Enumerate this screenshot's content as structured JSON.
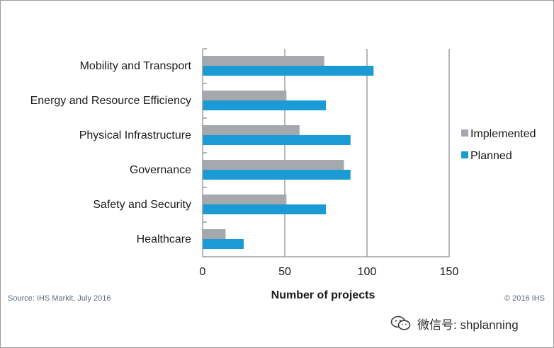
{
  "chart_data": {
    "type": "bar",
    "orientation": "horizontal",
    "categories": [
      "Mobility and Transport",
      "Energy and Resource Efficiency",
      "Physical Infrastructure",
      "Governance",
      "Safety and Security",
      "Healthcare"
    ],
    "series": [
      {
        "name": "Implemented",
        "color": "#a5a9ae",
        "values": [
          74,
          51,
          59,
          86,
          51,
          14
        ]
      },
      {
        "name": "Planned",
        "color": "#1b9bd6",
        "values": [
          104,
          75,
          90,
          90,
          75,
          25
        ]
      }
    ],
    "xlabel": "Number of projects",
    "xlim": [
      0,
      150
    ],
    "xticks": [
      0,
      50,
      100,
      150
    ],
    "grid": "vertical",
    "legend_position": "right"
  },
  "footer": {
    "source": "Source: IHS Markit, July 2016",
    "copyright": "© 2016 IHS"
  },
  "watermark": {
    "text": "微信号: shplanning",
    "icon": "wechat-icon"
  }
}
